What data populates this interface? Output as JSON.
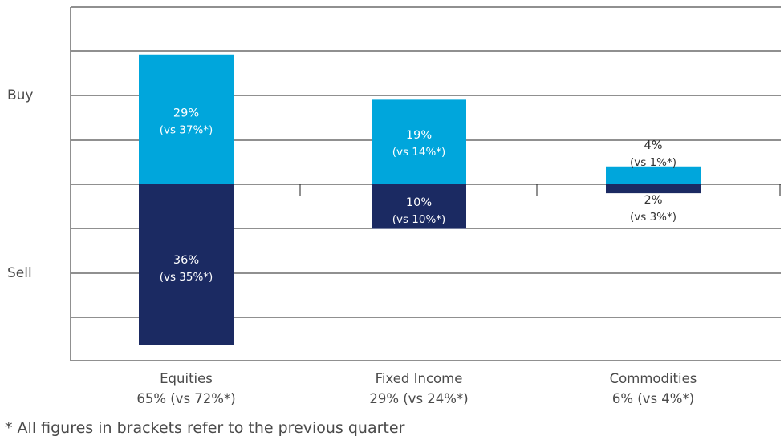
{
  "chart_data": {
    "type": "bar",
    "subtype": "diverging-stacked",
    "categories": [
      "Equities",
      "Fixed Income",
      "Commodities"
    ],
    "category_totals": [
      "65% (vs 72%*)",
      "29% (vs 24%*)",
      "6% (vs 4%*)"
    ],
    "y_labels": {
      "positive": "Buy",
      "negative": "Sell"
    },
    "series": [
      {
        "name": "Buy",
        "color": "#00a6dc",
        "values": [
          29,
          19,
          4
        ],
        "labels": [
          [
            "29%",
            "(vs 37%*)"
          ],
          [
            "19%",
            "(vs 14%*)"
          ],
          [
            "4%",
            "(vs 1%*)"
          ]
        ]
      },
      {
        "name": "Sell",
        "color": "#1b2a62",
        "values": [
          36,
          10,
          2
        ],
        "labels": [
          [
            "36%",
            "(vs 35%*)"
          ],
          [
            "10%",
            "(vs 10%*)"
          ],
          [
            "2%",
            "(vs 3%*)"
          ]
        ]
      }
    ],
    "ylim": [
      -40,
      40
    ],
    "grid": true,
    "footnote": "* All figures in brackets refer to the previous quarter"
  }
}
